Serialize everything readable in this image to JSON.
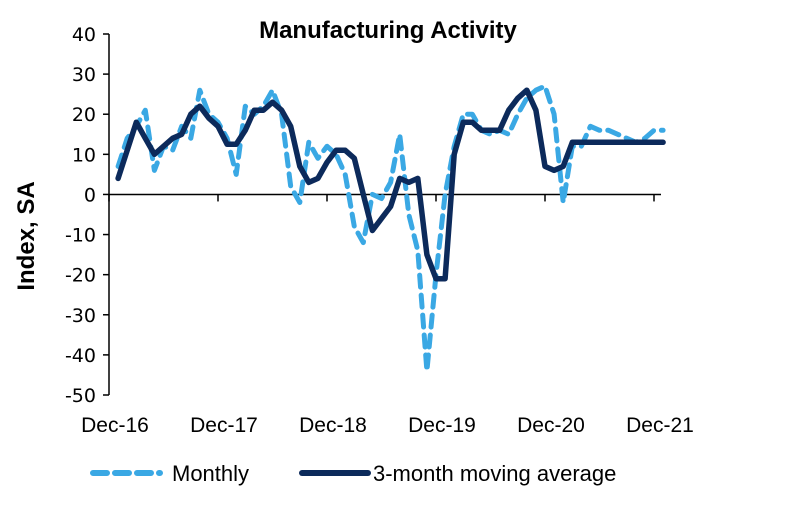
{
  "chart_data": {
    "type": "line",
    "title": "Manufacturing Activity",
    "xlabel": "",
    "ylabel": "Index, SA",
    "ylim": [
      -50,
      40
    ],
    "yticks": [
      40,
      30,
      20,
      10,
      0,
      -10,
      -20,
      -30,
      -40,
      -50
    ],
    "x_start_month_index": 1,
    "x_range_month_index": [
      0,
      61
    ],
    "xtick_labels": [
      "Dec-16",
      "Dec-17",
      "Dec-18",
      "Dec-19",
      "Dec-20",
      "Dec-21"
    ],
    "xtick_month_index": [
      0,
      12,
      24,
      36,
      48,
      60
    ],
    "grid": false,
    "legend_position": "bottom",
    "series": [
      {
        "name": "Monthly",
        "style": "dashed",
        "color": "#3aa8e4",
        "values": [
          7,
          14,
          17,
          21,
          6,
          12,
          11,
          17,
          14,
          26,
          20,
          18,
          14,
          5,
          22,
          20,
          22,
          26,
          20,
          2,
          -2,
          13,
          9,
          12,
          10,
          5,
          -8,
          -12,
          0,
          -1,
          3,
          15,
          -5,
          -14,
          -44,
          -20,
          0,
          12,
          20,
          20,
          16,
          15,
          16,
          15,
          20,
          24,
          26,
          27,
          20,
          -2,
          12,
          12,
          17,
          16,
          16,
          15,
          14,
          13,
          14,
          16,
          16
        ]
      },
      {
        "name": "3-month moving average",
        "style": "solid",
        "color": "#0c2a5b",
        "values": [
          4,
          11,
          18,
          14,
          10,
          12,
          14,
          15,
          20,
          22,
          19,
          17,
          12.5,
          12.5,
          16,
          21,
          21,
          23,
          21,
          17,
          7,
          3,
          4,
          8,
          11,
          11,
          9,
          0,
          -9,
          -6,
          -3,
          4,
          3,
          4,
          -15,
          -21,
          -21,
          10,
          18,
          18,
          16,
          16,
          16,
          21,
          24,
          26,
          21,
          7,
          6,
          7,
          13,
          13,
          13,
          13,
          13,
          13,
          13,
          13,
          13,
          13,
          13
        ]
      }
    ]
  }
}
